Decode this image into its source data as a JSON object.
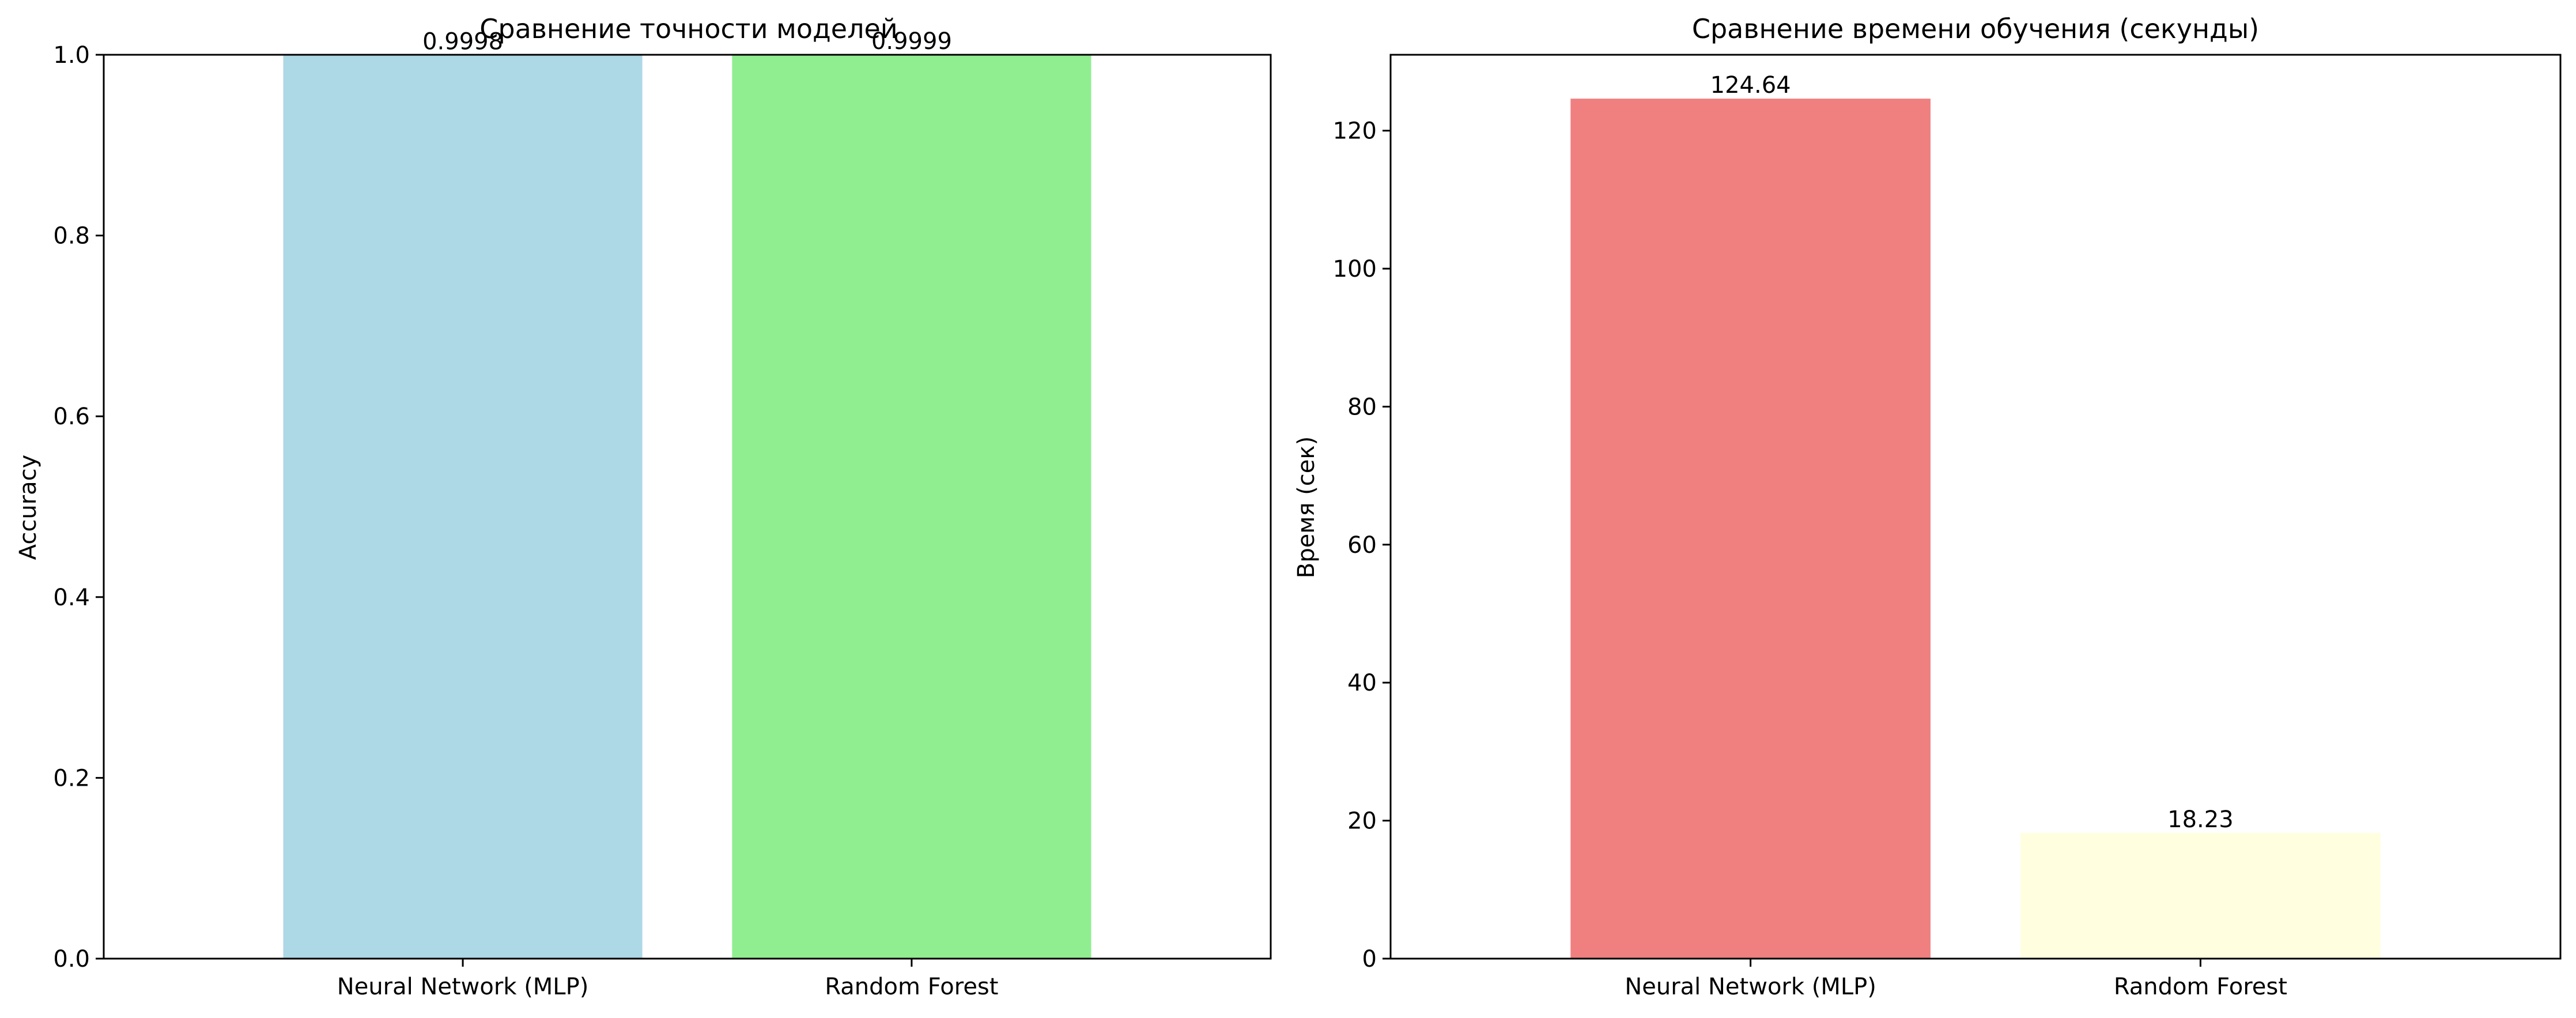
{
  "chart_data": [
    {
      "type": "bar",
      "title": "Сравнение точности моделей",
      "xlabel": "",
      "ylabel": "Accuracy",
      "categories": [
        "Neural Network (MLP)",
        "Random Forest"
      ],
      "values": [
        0.9998,
        0.9999
      ],
      "value_labels": [
        "0.9998",
        "0.9999"
      ],
      "colors": [
        "#add8e6",
        "#90ee90"
      ],
      "ylim": [
        0,
        1.0
      ],
      "yticks": [
        0.0,
        0.2,
        0.4,
        0.6,
        0.8,
        1.0
      ],
      "ytick_labels": [
        "0.0",
        "0.2",
        "0.4",
        "0.6",
        "0.8",
        "1.0"
      ],
      "grid": false,
      "legend": "none"
    },
    {
      "type": "bar",
      "title": "Сравнение времени обучения (секунды)",
      "xlabel": "",
      "ylabel": "Время (сек)",
      "categories": [
        "Neural Network (MLP)",
        "Random Forest"
      ],
      "values": [
        124.64,
        18.23
      ],
      "value_labels": [
        "124.64",
        "18.23"
      ],
      "colors": [
        "#f08080",
        "#ffffe0"
      ],
      "ylim": [
        0,
        131
      ],
      "yticks": [
        0,
        20,
        40,
        60,
        80,
        100,
        120
      ],
      "ytick_labels": [
        "0",
        "20",
        "40",
        "60",
        "80",
        "100",
        "120"
      ],
      "grid": false,
      "legend": "none"
    }
  ]
}
